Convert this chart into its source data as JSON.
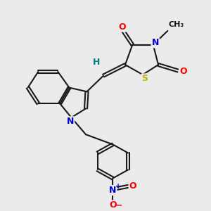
{
  "bg_color": "#ebebeb",
  "bond_color": "#1a1a1a",
  "atom_colors": {
    "O": "#ff0000",
    "N": "#0000cc",
    "S": "#b8b800",
    "H": "#008080",
    "N_plus": "#0000cc",
    "O_minus": "#ff0000"
  },
  "figsize": [
    3.0,
    3.0
  ],
  "dpi": 100
}
